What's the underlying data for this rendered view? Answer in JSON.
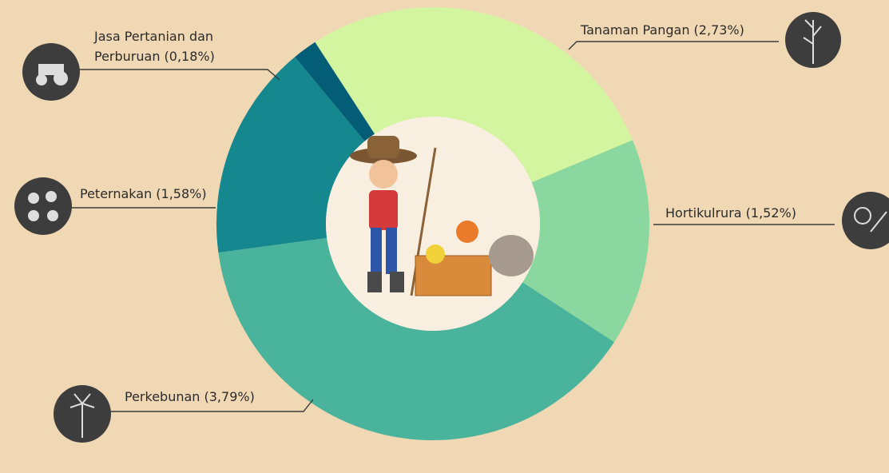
{
  "chart_data": {
    "type": "pie",
    "donut": true,
    "categories": [
      "Tanaman Pangan (2,73%)",
      "Hortikulrura (1,52%)",
      "Perkebunan (3,79%)",
      "Peternakan (1,58%)",
      "Jasa Pertanian dan Perburuan (0,18%)"
    ],
    "values": [
      2.73,
      1.52,
      3.79,
      1.58,
      0.18
    ],
    "colors": [
      "#d3f5a0",
      "#8ad8a0",
      "#4ab39c",
      "#14878f",
      "#035d77"
    ]
  }
}
